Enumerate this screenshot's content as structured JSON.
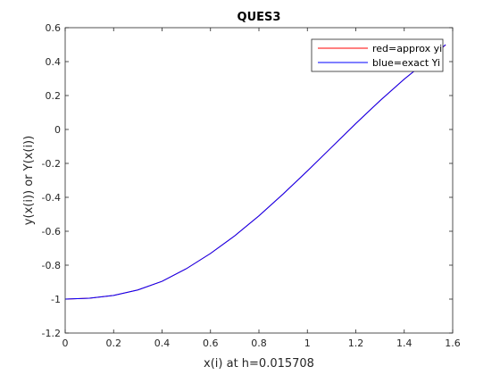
{
  "chart_data": {
    "type": "line",
    "title": "QUES3",
    "xlabel": "x(i) at h=0.015708",
    "ylabel": "y(x(i)) or Y(x(i))",
    "xlim": [
      0,
      1.6
    ],
    "ylim": [
      -1.2,
      0.6
    ],
    "xticks": [
      0,
      0.2,
      0.4,
      0.6,
      0.8,
      1,
      1.2,
      1.4,
      1.6
    ],
    "yticks": [
      -1.2,
      -1,
      -0.8,
      -0.6,
      -0.4,
      -0.2,
      0,
      0.2,
      0.4,
      0.6
    ],
    "xtick_labels": [
      "0",
      "0.2",
      "0.4",
      "0.6",
      "0.8",
      "1",
      "1.2",
      "1.4",
      "1.6"
    ],
    "ytick_labels": [
      "-1.2",
      "-1",
      "-0.8",
      "-0.6",
      "-0.4",
      "-0.2",
      "0",
      "0.2",
      "0.4",
      "0.6"
    ],
    "grid": false,
    "legend_position": "top-right",
    "series": [
      {
        "name": "red=approx yi",
        "color": "#ff0000",
        "x": [
          0,
          0.1,
          0.2,
          0.3,
          0.4,
          0.5,
          0.6,
          0.7,
          0.8,
          0.9,
          1.0,
          1.1,
          1.2,
          1.3,
          1.4,
          1.5,
          1.5708
        ],
        "y": [
          -1.0,
          -0.995,
          -0.978,
          -0.946,
          -0.895,
          -0.821,
          -0.731,
          -0.627,
          -0.509,
          -0.38,
          -0.245,
          -0.105,
          0.035,
          0.17,
          0.297,
          0.412,
          0.499
        ]
      },
      {
        "name": "blue=exact Yi",
        "color": "#0000ff",
        "x": [
          0,
          0.1,
          0.2,
          0.3,
          0.4,
          0.5,
          0.6,
          0.7,
          0.8,
          0.9,
          1.0,
          1.1,
          1.2,
          1.3,
          1.4,
          1.5,
          1.5708
        ],
        "y": [
          -1.0,
          -0.995,
          -0.978,
          -0.946,
          -0.895,
          -0.821,
          -0.731,
          -0.627,
          -0.509,
          -0.38,
          -0.245,
          -0.105,
          0.035,
          0.17,
          0.297,
          0.412,
          0.5
        ]
      }
    ]
  }
}
